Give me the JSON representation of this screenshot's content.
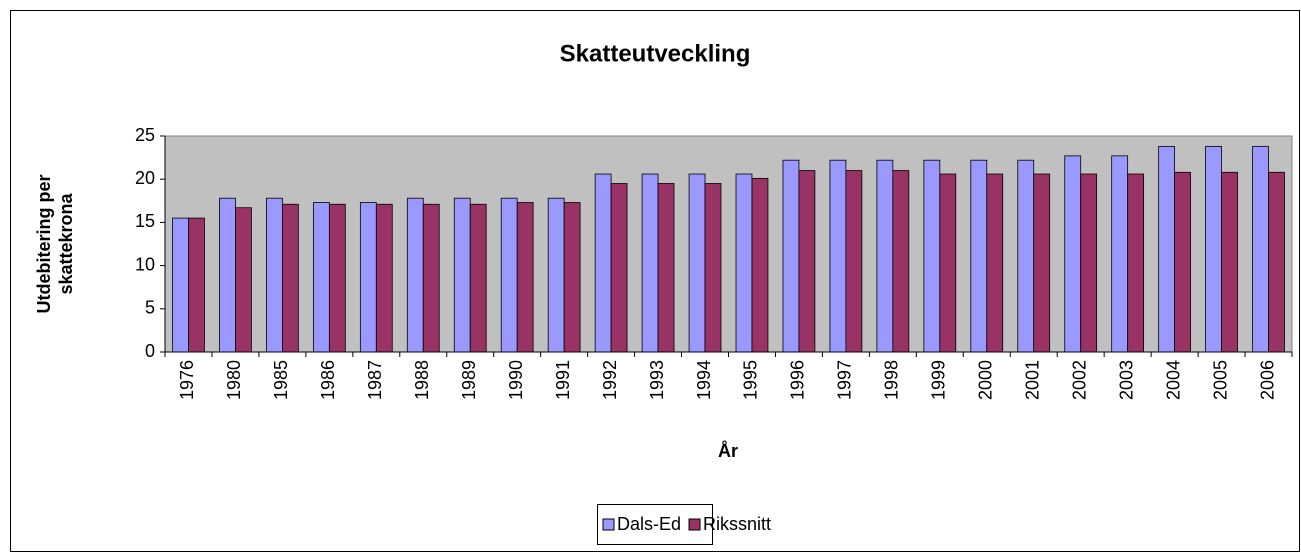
{
  "chart_data": {
    "type": "bar",
    "title": "Skatteutveckling",
    "y_label": "Utdebitering per skattekrona",
    "x_label": "År",
    "categories": [
      "1976",
      "1980",
      "1985",
      "1986",
      "1987",
      "1988",
      "1989",
      "1990",
      "1991",
      "1992",
      "1993",
      "1994",
      "1995",
      "1996",
      "1997",
      "1998",
      "1999",
      "2000",
      "2001",
      "2002",
      "2003",
      "2004",
      "2005",
      "2006"
    ],
    "series": [
      {
        "name": "Dals-Ed",
        "color": "#9999ff",
        "values": [
          15.5,
          17.8,
          17.8,
          17.3,
          17.3,
          17.8,
          17.8,
          17.8,
          17.8,
          20.6,
          20.6,
          20.6,
          20.6,
          22.2,
          22.2,
          22.2,
          22.2,
          22.2,
          22.2,
          22.7,
          22.7,
          23.8,
          23.8,
          23.8
        ]
      },
      {
        "name": "Rikssnitt",
        "color": "#993366",
        "values": [
          15.5,
          16.7,
          17.1,
          17.1,
          17.1,
          17.1,
          17.1,
          17.3,
          17.3,
          19.5,
          19.5,
          19.5,
          20.1,
          21.0,
          21.0,
          21.0,
          20.6,
          20.6,
          20.6,
          20.6,
          20.6,
          20.8,
          20.8,
          20.8
        ]
      }
    ],
    "ylim": [
      0,
      25
    ],
    "yticks": [
      0,
      5,
      10,
      15,
      20,
      25
    ],
    "grid": false,
    "legend": "bottom",
    "plot_background": "#c0c0c0"
  }
}
